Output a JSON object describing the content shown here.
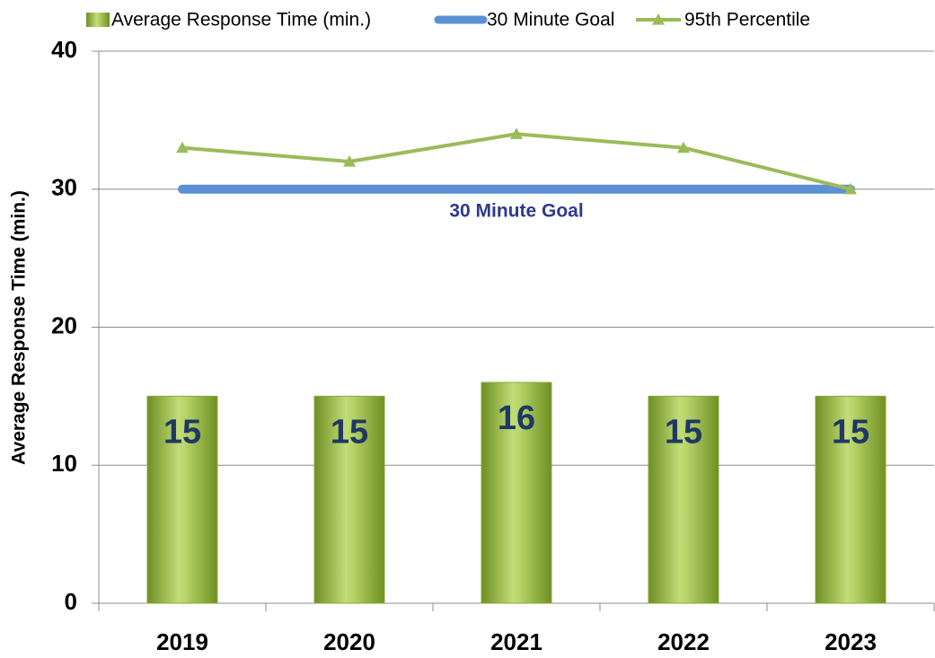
{
  "chart_data": {
    "type": "bar",
    "y_label": "Average Response Time (min.)",
    "categories": [
      "2019",
      "2020",
      "2021",
      "2022",
      "2023"
    ],
    "series": [
      {
        "name": "Average Response Time (min.)",
        "type": "bar",
        "color": "#9bbb59",
        "values": [
          15,
          15,
          16,
          15,
          15
        ]
      },
      {
        "name": "30 Minute Goal",
        "type": "line",
        "color": "#5b8fd6",
        "values": [
          30,
          30,
          30,
          30,
          30
        ]
      },
      {
        "name": "95th Percentile",
        "type": "line",
        "marker": "triangle",
        "color": "#9bbb59",
        "values": [
          33,
          32,
          34,
          33,
          30
        ]
      }
    ],
    "annotation": "30 Minute Goal",
    "ylim": [
      0,
      40
    ],
    "yticks": [
      0,
      10,
      20,
      30,
      40
    ],
    "grid": true,
    "legend": "top"
  }
}
